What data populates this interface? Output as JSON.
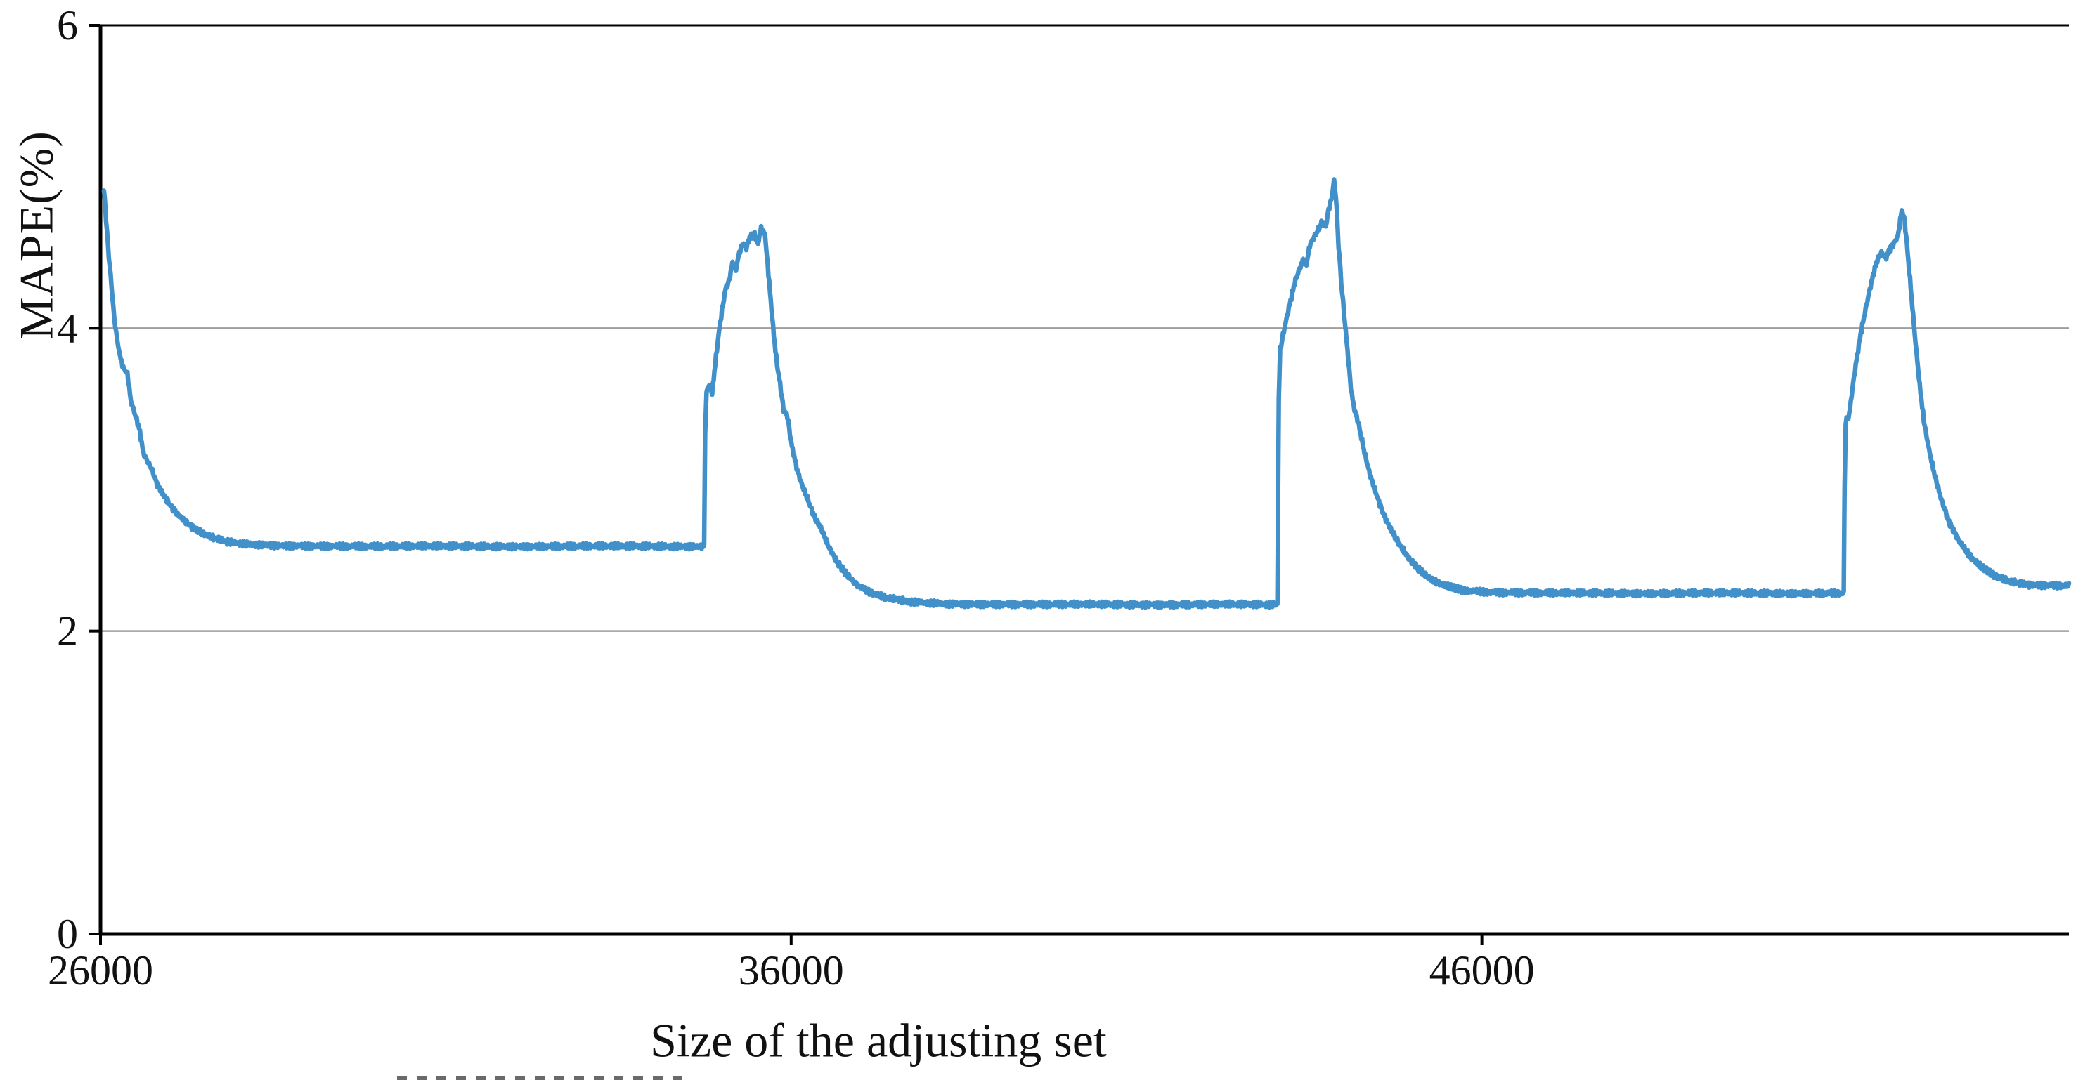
{
  "chart_data": {
    "type": "line",
    "title": "",
    "xlabel": "Size of the adjusting set",
    "ylabel": "MAPE(%)",
    "xlim": [
      26000,
      54500
    ],
    "ylim": [
      0,
      6
    ],
    "xticks": [
      26000,
      36000,
      46000
    ],
    "yticks": [
      0,
      2,
      4,
      6
    ],
    "gridlines_y": [
      2,
      4
    ],
    "grid": "horizontal-only",
    "legend": "none",
    "line_color": "#4190c9",
    "grid_color": "#9e9e9e",
    "axis_color": "#000000",
    "series": [
      {
        "name": "MAPE",
        "points": [
          [
            26050,
            4.92
          ],
          [
            26080,
            4.72
          ],
          [
            26120,
            4.48
          ],
          [
            26160,
            4.28
          ],
          [
            26200,
            4.06
          ],
          [
            26240,
            3.93
          ],
          [
            26280,
            3.82
          ],
          [
            26330,
            3.74
          ],
          [
            26390,
            3.7
          ],
          [
            26440,
            3.52
          ],
          [
            26500,
            3.43
          ],
          [
            26560,
            3.34
          ],
          [
            26620,
            3.18
          ],
          [
            26680,
            3.12
          ],
          [
            26740,
            3.07
          ],
          [
            26820,
            2.97
          ],
          [
            26910,
            2.9
          ],
          [
            27010,
            2.83
          ],
          [
            27120,
            2.77
          ],
          [
            27260,
            2.71
          ],
          [
            27420,
            2.66
          ],
          [
            27600,
            2.62
          ],
          [
            27820,
            2.59
          ],
          [
            28120,
            2.575
          ],
          [
            28600,
            2.565
          ],
          [
            30000,
            2.56
          ],
          [
            34740,
            2.56
          ],
          [
            34755,
            3.3
          ],
          [
            34775,
            3.58
          ],
          [
            34815,
            3.63
          ],
          [
            34855,
            3.57
          ],
          [
            34900,
            3.76
          ],
          [
            34950,
            3.96
          ],
          [
            35000,
            4.12
          ],
          [
            35050,
            4.26
          ],
          [
            35100,
            4.31
          ],
          [
            35150,
            4.43
          ],
          [
            35200,
            4.39
          ],
          [
            35250,
            4.5
          ],
          [
            35300,
            4.56
          ],
          [
            35350,
            4.53
          ],
          [
            35400,
            4.6
          ],
          [
            35470,
            4.62
          ],
          [
            35520,
            4.56
          ],
          [
            35565,
            4.66
          ],
          [
            35620,
            4.62
          ],
          [
            35660,
            4.42
          ],
          [
            35705,
            4.18
          ],
          [
            35750,
            3.95
          ],
          [
            35795,
            3.76
          ],
          [
            35840,
            3.63
          ],
          [
            35890,
            3.46
          ],
          [
            35945,
            3.42
          ],
          [
            36010,
            3.22
          ],
          [
            36090,
            3.06
          ],
          [
            36160,
            2.96
          ],
          [
            36240,
            2.87
          ],
          [
            36330,
            2.76
          ],
          [
            36430,
            2.68
          ],
          [
            36540,
            2.56
          ],
          [
            36660,
            2.46
          ],
          [
            36790,
            2.38
          ],
          [
            36940,
            2.31
          ],
          [
            37120,
            2.26
          ],
          [
            37360,
            2.22
          ],
          [
            37700,
            2.195
          ],
          [
            38250,
            2.18
          ],
          [
            40000,
            2.175
          ],
          [
            43040,
            2.175
          ],
          [
            43050,
            2.9
          ],
          [
            43060,
            3.55
          ],
          [
            43080,
            3.86
          ],
          [
            43120,
            3.95
          ],
          [
            43170,
            4.06
          ],
          [
            43230,
            4.18
          ],
          [
            43290,
            4.3
          ],
          [
            43350,
            4.38
          ],
          [
            43410,
            4.45
          ],
          [
            43460,
            4.42
          ],
          [
            43510,
            4.55
          ],
          [
            43570,
            4.6
          ],
          [
            43630,
            4.65
          ],
          [
            43690,
            4.7
          ],
          [
            43740,
            4.67
          ],
          [
            43780,
            4.78
          ],
          [
            43825,
            4.86
          ],
          [
            43860,
            4.97
          ],
          [
            43885,
            4.88
          ],
          [
            43925,
            4.55
          ],
          [
            43965,
            4.3
          ],
          [
            44005,
            4.1
          ],
          [
            44055,
            3.85
          ],
          [
            44105,
            3.6
          ],
          [
            44155,
            3.46
          ],
          [
            44210,
            3.38
          ],
          [
            44290,
            3.2
          ],
          [
            44370,
            3.05
          ],
          [
            44460,
            2.92
          ],
          [
            44560,
            2.79
          ],
          [
            44670,
            2.68
          ],
          [
            44790,
            2.585
          ],
          [
            44925,
            2.49
          ],
          [
            45080,
            2.41
          ],
          [
            45255,
            2.34
          ],
          [
            45460,
            2.3
          ],
          [
            45720,
            2.27
          ],
          [
            46150,
            2.255
          ],
          [
            47000,
            2.25
          ],
          [
            51240,
            2.25
          ],
          [
            51252,
            2.95
          ],
          [
            51268,
            3.38
          ],
          [
            51320,
            3.43
          ],
          [
            51365,
            3.6
          ],
          [
            51425,
            3.79
          ],
          [
            51485,
            3.96
          ],
          [
            51545,
            4.1
          ],
          [
            51605,
            4.23
          ],
          [
            51665,
            4.35
          ],
          [
            51725,
            4.45
          ],
          [
            51785,
            4.5
          ],
          [
            51845,
            4.46
          ],
          [
            51905,
            4.52
          ],
          [
            51965,
            4.56
          ],
          [
            52025,
            4.61
          ],
          [
            52080,
            4.78
          ],
          [
            52122,
            4.71
          ],
          [
            52165,
            4.5
          ],
          [
            52222,
            4.2
          ],
          [
            52280,
            3.9
          ],
          [
            52340,
            3.62
          ],
          [
            52400,
            3.39
          ],
          [
            52465,
            3.22
          ],
          [
            52545,
            3.05
          ],
          [
            52645,
            2.88
          ],
          [
            52765,
            2.72
          ],
          [
            52905,
            2.6
          ],
          [
            53055,
            2.5
          ],
          [
            53225,
            2.425
          ],
          [
            53425,
            2.365
          ],
          [
            53655,
            2.325
          ],
          [
            53960,
            2.305
          ],
          [
            54500,
            2.3
          ]
        ]
      }
    ]
  }
}
